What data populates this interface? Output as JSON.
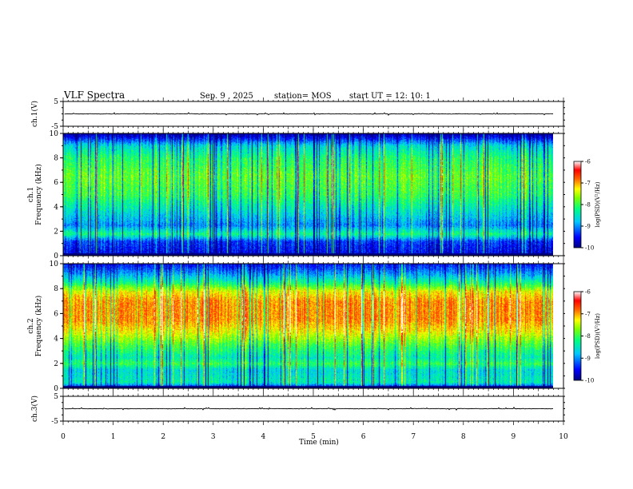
{
  "header": {
    "title": "VLF Spectra",
    "date": "Sep. 9 , 2025",
    "station": "station= MOS",
    "start": "start  UT =    12: 10: 1"
  },
  "chart_data": [
    {
      "type": "line",
      "name": "ch1-waveform",
      "ylabel": "ch.1(V)",
      "ylim": [
        -5,
        5
      ],
      "yticks": [
        5,
        -5
      ],
      "baseline": 0,
      "xlim": [
        0,
        9.8
      ]
    },
    {
      "type": "heatmap",
      "name": "ch1-spectrogram",
      "ylabel": "ch.1\nFrequency (kHz)",
      "ylim": [
        0,
        10
      ],
      "yticks": [
        0,
        2,
        4,
        6,
        8,
        10
      ],
      "xlim": [
        0,
        9.8
      ],
      "colorbar": {
        "label": "log(PSD)(V²/Hz)",
        "range": [
          -10,
          -6
        ],
        "ticks": [
          -6,
          -7,
          -8,
          -9,
          -10
        ]
      },
      "profile": [
        [
          0.0,
          -9.6
        ],
        [
          1.2,
          -9.3
        ],
        [
          1.8,
          -8.2
        ],
        [
          2.5,
          -9.0
        ],
        [
          4.0,
          -8.4
        ],
        [
          5.0,
          -8.0
        ],
        [
          6.5,
          -7.8
        ],
        [
          8.0,
          -8.1
        ],
        [
          9.0,
          -8.6
        ],
        [
          9.6,
          -9.4
        ],
        [
          10.0,
          -9.9
        ]
      ]
    },
    {
      "type": "heatmap",
      "name": "ch2-spectrogram",
      "ylabel": "ch.2\nFrequency (kHz)",
      "ylim": [
        0,
        10
      ],
      "yticks": [
        0,
        2,
        4,
        6,
        8,
        10
      ],
      "xlim": [
        0,
        9.8
      ],
      "colorbar": {
        "label": "log(PSD)(V²/Hz)",
        "range": [
          -10,
          -6
        ],
        "ticks": [
          -6,
          -7,
          -8,
          -9,
          -10
        ]
      },
      "profile": [
        [
          0.0,
          -9.8
        ],
        [
          0.5,
          -8.4
        ],
        [
          1.5,
          -8.6
        ],
        [
          2.0,
          -8.0
        ],
        [
          2.5,
          -8.4
        ],
        [
          3.5,
          -7.9
        ],
        [
          4.5,
          -7.3
        ],
        [
          5.5,
          -6.9
        ],
        [
          7.0,
          -6.9
        ],
        [
          7.8,
          -7.3
        ],
        [
          8.5,
          -8.2
        ],
        [
          9.2,
          -8.9
        ],
        [
          10.0,
          -9.5
        ]
      ]
    },
    {
      "type": "line",
      "name": "ch3-waveform",
      "ylabel": "ch.3(V)",
      "ylim": [
        -5,
        5
      ],
      "yticks": [
        5,
        -5
      ],
      "baseline": 0,
      "xlim": [
        0,
        9.8
      ]
    }
  ],
  "xaxis": {
    "label": "Time  (min)",
    "range": [
      0,
      10
    ],
    "ticks": [
      0,
      1,
      2,
      3,
      4,
      5,
      6,
      7,
      8,
      9,
      10
    ]
  },
  "colors": {
    "scale": [
      "#00007f",
      "#0000ff",
      "#0080ff",
      "#00ffff",
      "#00ff80",
      "#80ff00",
      "#ffff00",
      "#ff8000",
      "#ff0000",
      "#ffffff"
    ],
    "trace": "#000000"
  }
}
